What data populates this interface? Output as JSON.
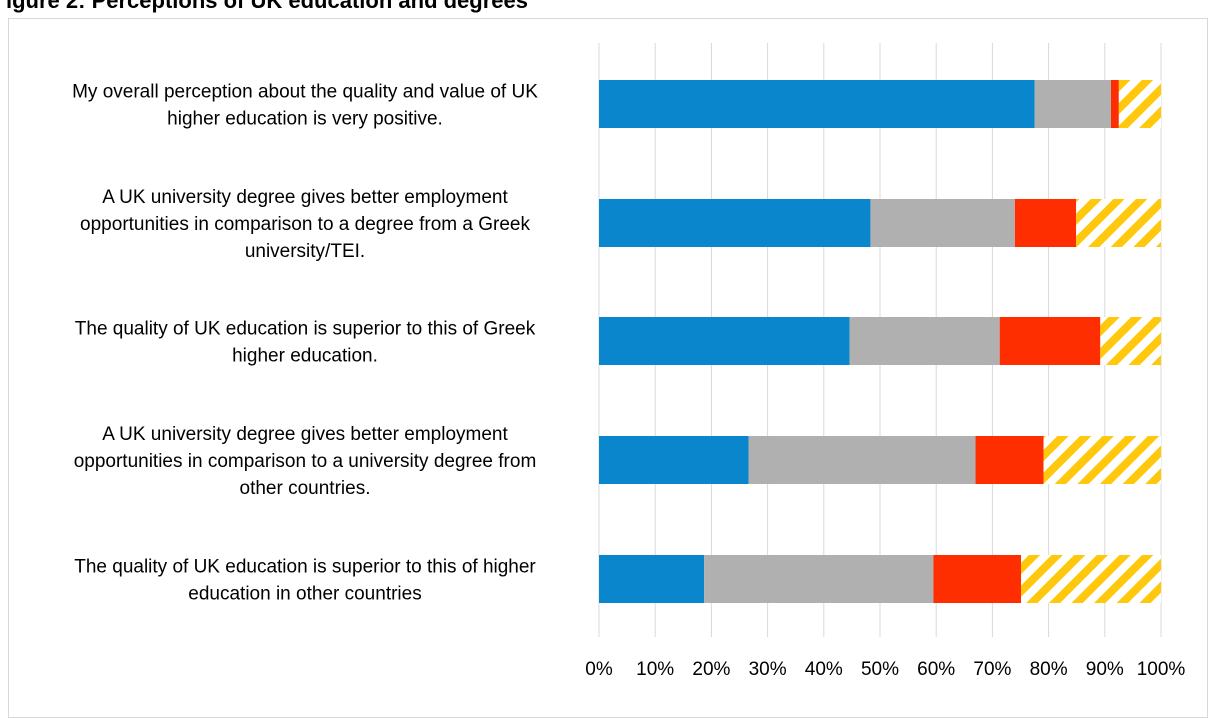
{
  "page": {
    "title": "igure 2: Perceptions of UK education and degrees"
  },
  "chart_data": {
    "type": "bar",
    "orientation": "horizontal",
    "stacked": true,
    "normalized": true,
    "title": "",
    "xlabel": "",
    "ylabel": "",
    "xlim": [
      0,
      100
    ],
    "x_ticks": [
      "0%",
      "10%",
      "20%",
      "30%",
      "40%",
      "50%",
      "60%",
      "70%",
      "80%",
      "90%",
      "100%"
    ],
    "grid": "vertical",
    "legend": "none visible",
    "categories": [
      [
        "My overall perception about the quality and value of UK",
        "higher education is very positive."
      ],
      [
        "A UK university degree gives better employment",
        "opportunities in comparison to a degree from a Greek",
        "university/TEI."
      ],
      [
        "The quality of UK education is superior to this of Greek",
        "higher education."
      ],
      [
        "A UK university degree gives better employment",
        "opportunities in comparison to a university degree from",
        "other countries."
      ],
      [
        "The quality of UK education is superior to this of higher",
        "education in other countries"
      ]
    ],
    "series": [
      {
        "color": "#0a86cd",
        "pattern": "solid",
        "values": [
          77.5,
          48.3,
          44.6,
          26.6,
          18.7
        ]
      },
      {
        "color": "#b0b0b0",
        "pattern": "solid",
        "values": [
          13.6,
          25.7,
          26.7,
          40.4,
          40.8
        ]
      },
      {
        "color": "#ff2e00",
        "pattern": "solid",
        "values": [
          1.4,
          10.9,
          17.9,
          12.1,
          15.6
        ]
      },
      {
        "color": "#ffc80c",
        "pattern": "diagonal-stripes",
        "values": [
          7.5,
          15.1,
          10.8,
          20.9,
          24.9
        ]
      }
    ]
  }
}
